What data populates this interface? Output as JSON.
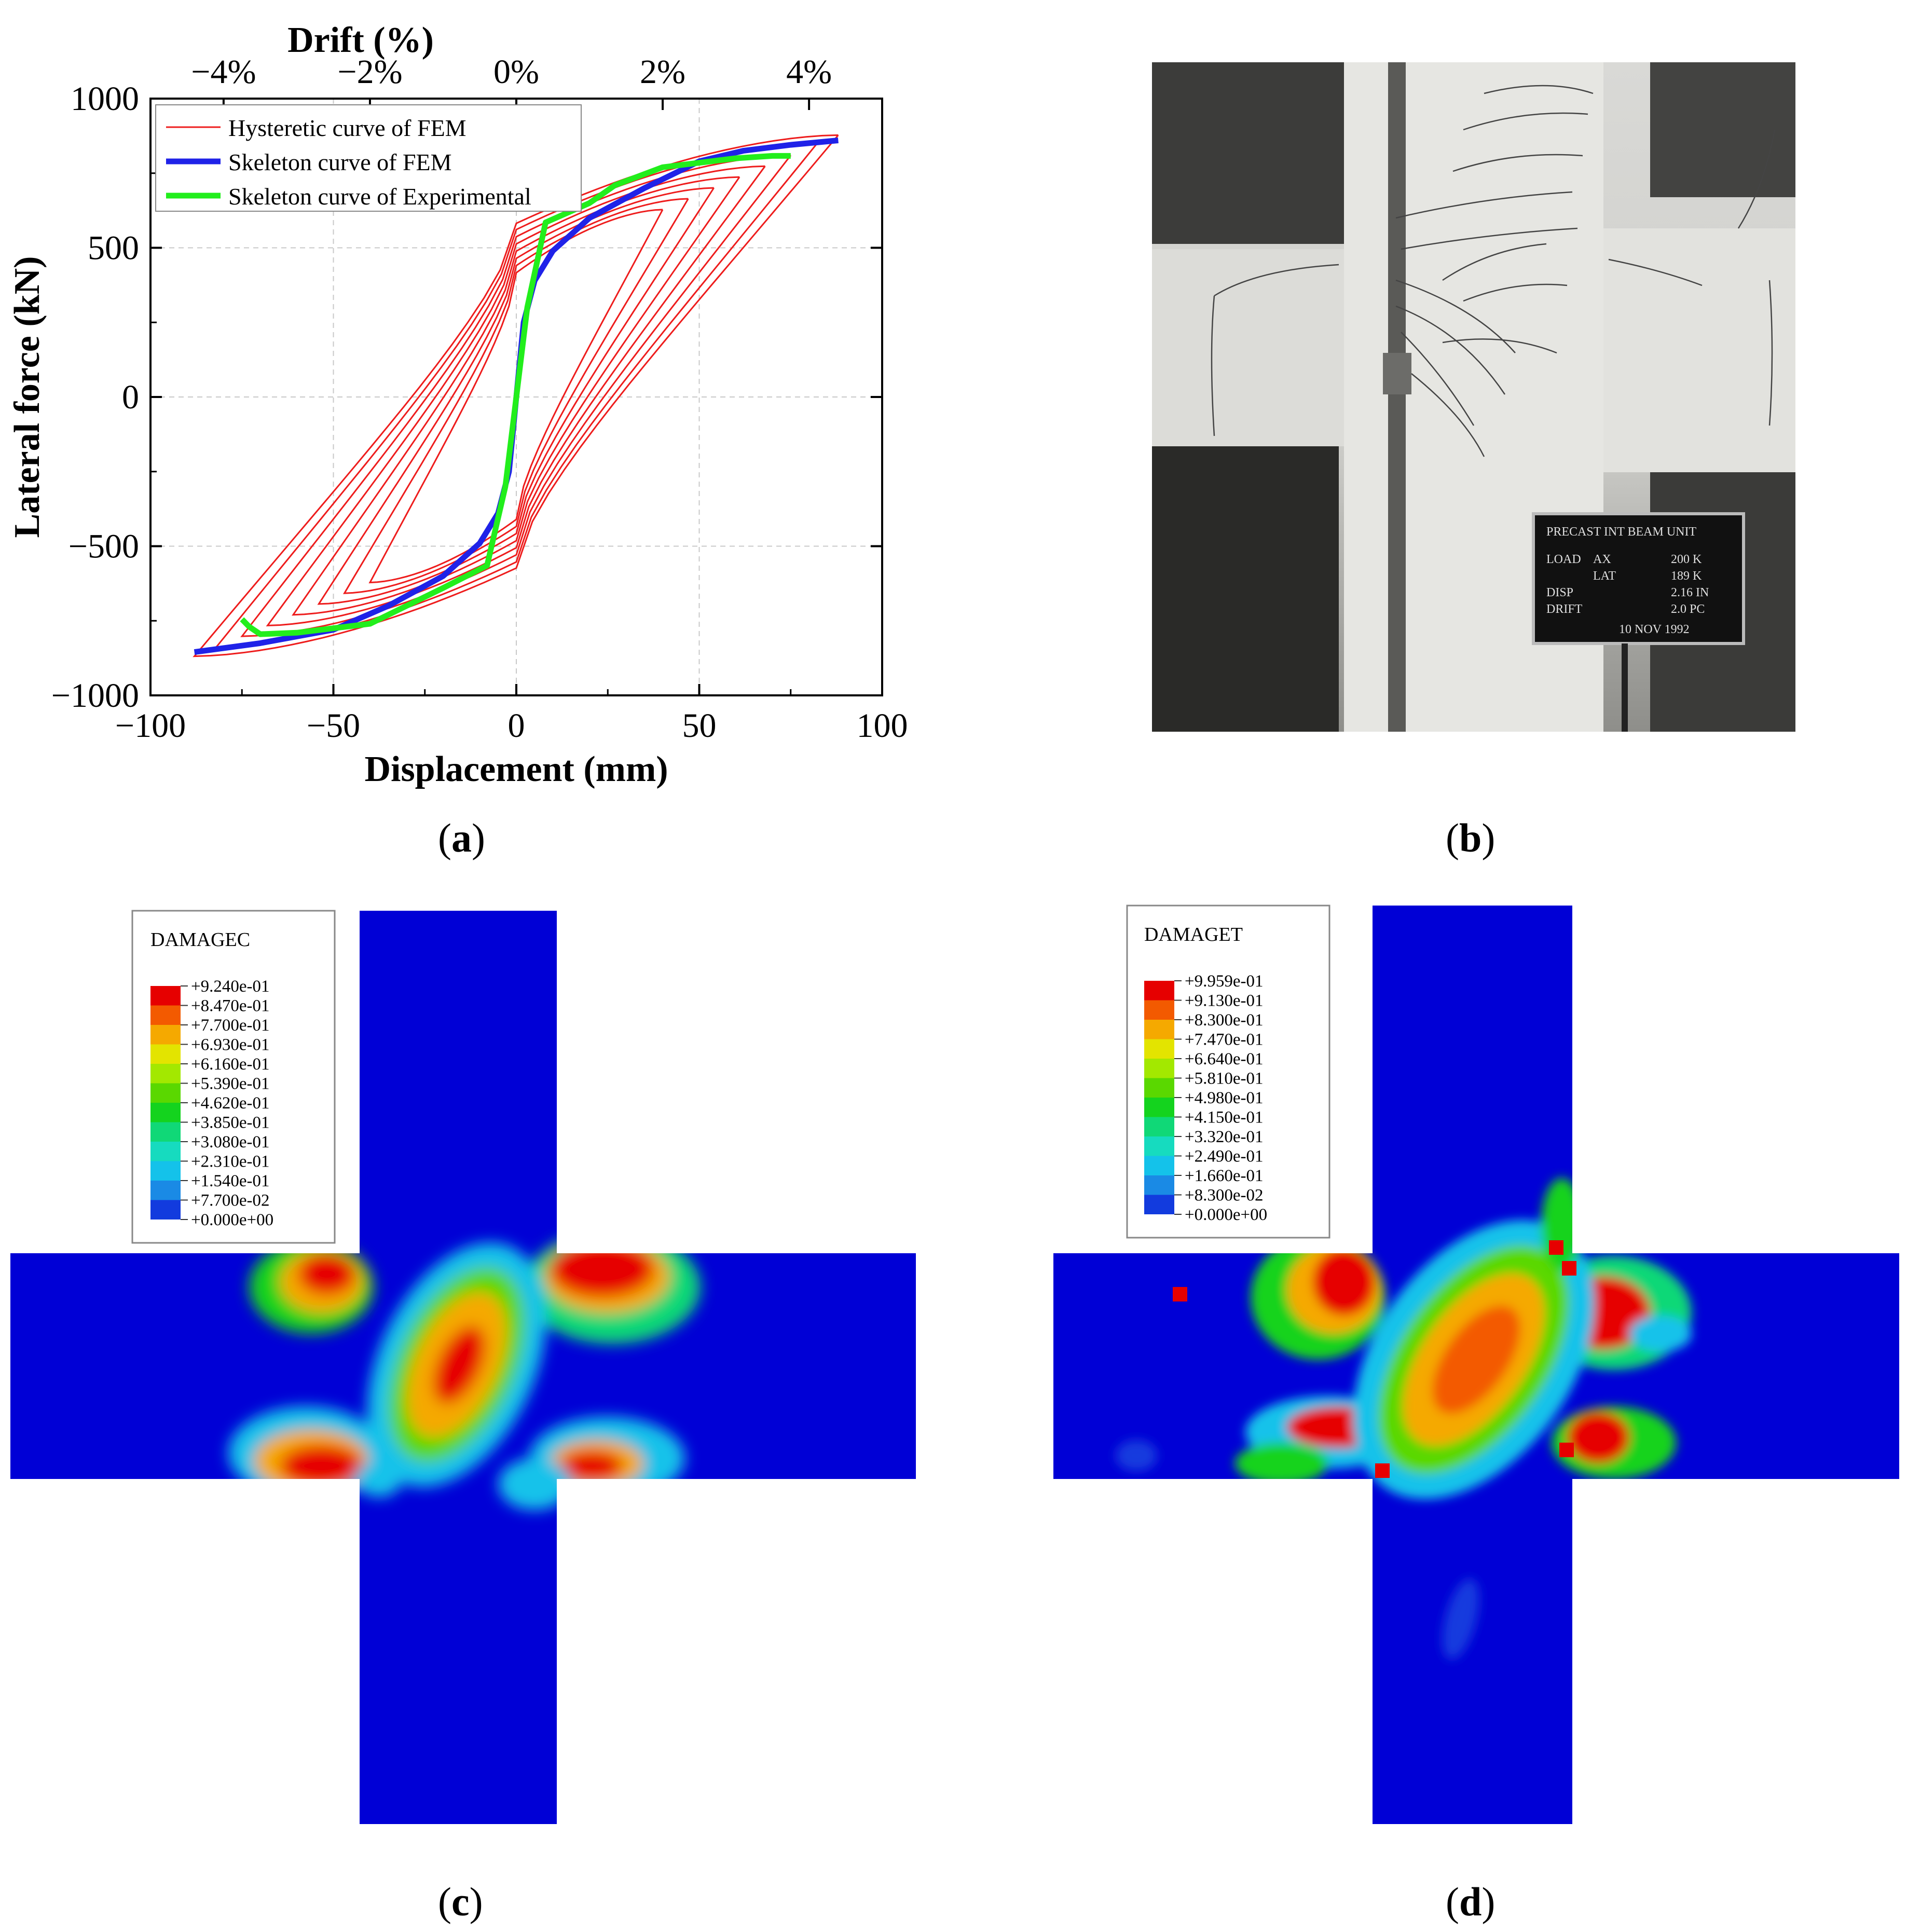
{
  "chart_data": {
    "type": "line",
    "title": "",
    "xlabel": "Displacement (mm)",
    "ylabel": "Lateral force (kN)",
    "x2label": "Drift  (%)",
    "xlim": [
      -100,
      100
    ],
    "ylim": [
      -1000,
      1000
    ],
    "xticks": [
      "−100",
      "−50",
      "0",
      "50",
      "100"
    ],
    "yticks": [
      "−1000",
      "−500",
      "0",
      "500",
      "1000"
    ],
    "x2ticks": [
      "−4%",
      "−2%",
      "0%",
      "2%",
      "4%"
    ],
    "legend_position": "top-left",
    "series": [
      {
        "name": "Hysteretic curve of FEM",
        "color": "#ee1c1c",
        "amplitudes": [
          40,
          47,
          54,
          61,
          68,
          75,
          82,
          88
        ]
      },
      {
        "name": "Skeleton curve of FEM",
        "color": "#1f22e8",
        "x": [
          -88,
          -70,
          -50,
          -35,
          -20,
          -10,
          -5,
          -2,
          0,
          2,
          5,
          10,
          20,
          35,
          50,
          62,
          75,
          88
        ],
        "y": [
          -855,
          -825,
          -780,
          -700,
          -600,
          -490,
          -390,
          -250,
          0,
          250,
          390,
          490,
          600,
          700,
          790,
          825,
          845,
          860
        ]
      },
      {
        "name": "Skeleton curve of Experimental",
        "color": "#22ee1c",
        "x": [
          -75,
          -73,
          -70,
          -60,
          -40,
          -20,
          -8,
          -3,
          0,
          3,
          8,
          20,
          27,
          40,
          60,
          70,
          75
        ],
        "y": [
          -745,
          -770,
          -795,
          -790,
          -760,
          -640,
          -565,
          -300,
          0,
          300,
          585,
          650,
          710,
          770,
          800,
          808,
          808
        ]
      }
    ]
  },
  "captions": {
    "a": "a",
    "b": "b",
    "c": "c",
    "d": "d"
  },
  "legend_c": {
    "title": "DAMAGEC",
    "values": [
      "+9.240e-01",
      "+8.470e-01",
      "+7.700e-01",
      "+6.930e-01",
      "+6.160e-01",
      "+5.390e-01",
      "+4.620e-01",
      "+3.850e-01",
      "+3.080e-01",
      "+2.310e-01",
      "+1.540e-01",
      "+7.700e-02",
      "+0.000e+00"
    ],
    "colors": [
      "#e60000",
      "#f35a00",
      "#f5a900",
      "#e3e400",
      "#a3e800",
      "#5ad800",
      "#14d31e",
      "#10d877",
      "#16dbbf",
      "#14c2ea",
      "#1a8ae5",
      "#123bde",
      "#0000d6"
    ]
  },
  "legend_d": {
    "title": "DAMAGET",
    "values": [
      "+9.959e-01",
      "+9.130e-01",
      "+8.300e-01",
      "+7.470e-01",
      "+6.640e-01",
      "+5.810e-01",
      "+4.980e-01",
      "+4.150e-01",
      "+3.320e-01",
      "+2.490e-01",
      "+1.660e-01",
      "+8.300e-02",
      "+0.000e+00"
    ],
    "colors": [
      "#e60000",
      "#f35a00",
      "#f5a900",
      "#e3e400",
      "#a3e800",
      "#5ad800",
      "#14d31e",
      "#10d877",
      "#16dbbf",
      "#14c2ea",
      "#1a8ae5",
      "#123bde",
      "#0000d6"
    ]
  },
  "photo": {
    "sign_title": "PRECAST INT BEAM UNIT",
    "sign_rows": [
      [
        "LOAD",
        "AX",
        "200 K"
      ],
      [
        "",
        "LAT",
        "189 K"
      ],
      [
        "DISP",
        "",
        "2.16 IN"
      ],
      [
        "DRIFT",
        "",
        "2.0 PC"
      ]
    ],
    "sign_date": "10 NOV 1992"
  }
}
